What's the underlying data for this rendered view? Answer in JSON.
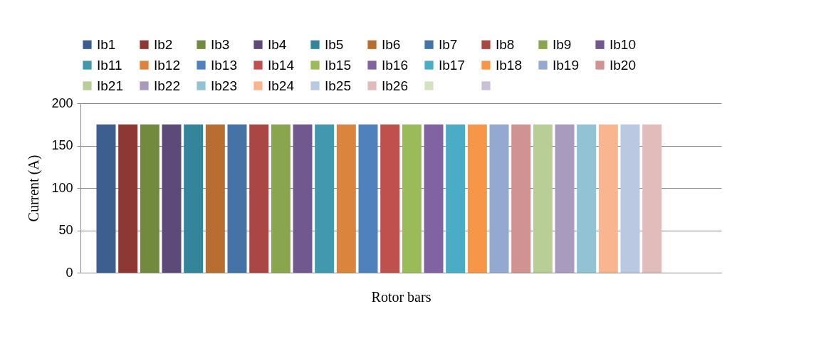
{
  "chart_data": {
    "type": "bar",
    "xlabel": "Rotor bars",
    "ylabel": "Current (A)",
    "categories": [
      null
    ],
    "ylim": [
      0,
      200
    ],
    "yticks": [
      0,
      50,
      100,
      150,
      200
    ],
    "grid": "y",
    "legend": "top",
    "series": [
      {
        "name": "Ib1",
        "color": "#3c5f8f",
        "values": [
          175
        ]
      },
      {
        "name": "Ib2",
        "color": "#8e3835",
        "values": [
          175
        ]
      },
      {
        "name": "Ib3",
        "color": "#728a3e",
        "values": [
          175
        ]
      },
      {
        "name": "Ib4",
        "color": "#5e4a78",
        "values": [
          175
        ]
      },
      {
        "name": "Ib5",
        "color": "#34849a",
        "values": [
          175
        ]
      },
      {
        "name": "Ib6",
        "color": "#b86e31",
        "values": [
          175
        ]
      },
      {
        "name": "Ib7",
        "color": "#4572a7",
        "values": [
          175
        ]
      },
      {
        "name": "Ib8",
        "color": "#aa4643",
        "values": [
          175
        ]
      },
      {
        "name": "Ib9",
        "color": "#89a54e",
        "values": [
          175
        ]
      },
      {
        "name": "Ib10",
        "color": "#71588f",
        "values": [
          175
        ]
      },
      {
        "name": "Ib11",
        "color": "#4198af",
        "values": [
          175
        ]
      },
      {
        "name": "Ib12",
        "color": "#db843d",
        "values": [
          175
        ]
      },
      {
        "name": "Ib13",
        "color": "#4f81bd",
        "values": [
          175
        ]
      },
      {
        "name": "Ib14",
        "color": "#c0504d",
        "values": [
          175
        ]
      },
      {
        "name": "Ib15",
        "color": "#9bbb59",
        "values": [
          175
        ]
      },
      {
        "name": "Ib16",
        "color": "#8064a2",
        "values": [
          175
        ]
      },
      {
        "name": "Ib17",
        "color": "#4bacc6",
        "values": [
          175
        ]
      },
      {
        "name": "Ib18",
        "color": "#f79646",
        "values": [
          175
        ]
      },
      {
        "name": "Ib19",
        "color": "#93a9cf",
        "values": [
          175
        ]
      },
      {
        "name": "Ib20",
        "color": "#d19392",
        "values": [
          175
        ]
      },
      {
        "name": "Ib21",
        "color": "#b9cd96",
        "values": [
          175
        ]
      },
      {
        "name": "Ib22",
        "color": "#a99bbd",
        "values": [
          175
        ]
      },
      {
        "name": "Ib23",
        "color": "#91c3d5",
        "values": [
          175
        ]
      },
      {
        "name": "Ib24",
        "color": "#f9b590",
        "values": [
          175
        ]
      },
      {
        "name": "Ib25",
        "color": "#bac8e2",
        "values": [
          175
        ]
      },
      {
        "name": "Ib26",
        "color": "#e2bcbb",
        "values": [
          175
        ]
      },
      {
        "color": "#d4e2c0",
        "values": [
          null
        ]
      },
      {
        "color": "#c9c0d8",
        "values": [
          null
        ]
      }
    ]
  }
}
